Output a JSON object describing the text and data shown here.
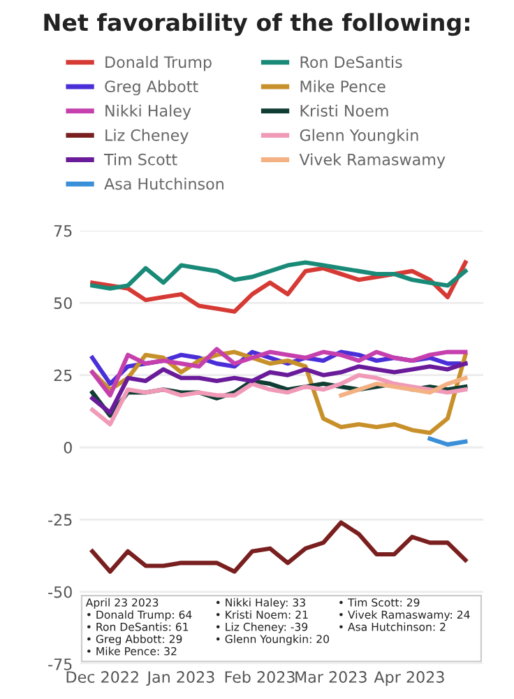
{
  "chart_data": {
    "type": "line",
    "title": "Net favorability of the following:",
    "x": [
      "2022-11-27",
      "2022-12-04",
      "2022-12-11",
      "2022-12-18",
      "2022-12-25",
      "2023-01-01",
      "2023-01-08",
      "2023-01-15",
      "2023-01-22",
      "2023-01-29",
      "2023-02-05",
      "2023-02-12",
      "2023-02-19",
      "2023-02-26",
      "2023-03-05",
      "2023-03-12",
      "2023-03-19",
      "2023-03-26",
      "2023-04-02",
      "2023-04-09",
      "2023-04-16",
      "2023-04-23"
    ],
    "series": [
      {
        "name": "Donald Trump",
        "color": "#d63a35",
        "marker": "none",
        "values": [
          57,
          56,
          55,
          51,
          52,
          53,
          49,
          48,
          47,
          53,
          57,
          53,
          61,
          62,
          60,
          58,
          59,
          60,
          61,
          58,
          52,
          64
        ]
      },
      {
        "name": "Ron DeSantis",
        "color": "#1a8a78",
        "values": [
          56,
          55,
          56,
          62,
          57,
          63,
          62,
          61,
          58,
          59,
          61,
          63,
          64,
          63,
          62,
          61,
          60,
          60,
          58,
          57,
          56,
          61
        ]
      },
      {
        "name": "Greg Abbott",
        "color": "#4a2ed8",
        "marker": "none",
        "values": [
          31,
          22,
          28,
          29,
          30,
          32,
          31,
          29,
          28,
          33,
          31,
          29,
          31,
          30,
          33,
          32,
          30,
          31,
          30,
          31,
          29,
          29
        ]
      },
      {
        "name": "Mike Pence",
        "color": "#c8902a",
        "marker": "none",
        "values": [
          26,
          20,
          24,
          32,
          31,
          26,
          30,
          32,
          33,
          31,
          29,
          30,
          28,
          10,
          7,
          8,
          7,
          8,
          6,
          5,
          10,
          32
        ]
      },
      {
        "name": "Nikki Haley",
        "color": "#c640ad",
        "values": [
          26,
          18,
          32,
          29,
          30,
          29,
          28,
          34,
          29,
          31,
          33,
          32,
          31,
          33,
          32,
          30,
          33,
          31,
          30,
          32,
          33,
          33
        ]
      },
      {
        "name": "Kristi Noem",
        "color": "#0f3d33",
        "marker": "none",
        "values": [
          19,
          11,
          19,
          19,
          20,
          19,
          19,
          17,
          19,
          23,
          22,
          20,
          21,
          22,
          21,
          20,
          21,
          22,
          20,
          21,
          20,
          21
        ]
      },
      {
        "name": "Liz Cheney",
        "color": "#7a1f1f",
        "values": [
          -36,
          -43,
          -36,
          -41,
          -41,
          -40,
          -40,
          -40,
          -43,
          -36,
          -35,
          -40,
          -35,
          -33,
          -26,
          -30,
          -37,
          -37,
          -31,
          -33,
          -33,
          -39
        ]
      },
      {
        "name": "Glenn Youngkin",
        "color": "#f09ab8",
        "marker": "none",
        "values": [
          13,
          8,
          20,
          19,
          20,
          18,
          19,
          18,
          18,
          22,
          20,
          19,
          21,
          20,
          22,
          25,
          24,
          22,
          21,
          20,
          19,
          20
        ]
      },
      {
        "name": "Tim Scott",
        "color": "#6a1b9a",
        "values": [
          17,
          12,
          24,
          23,
          27,
          24,
          24,
          23,
          24,
          23,
          26,
          25,
          27,
          25,
          26,
          28,
          27,
          26,
          27,
          28,
          27,
          29
        ]
      },
      {
        "name": "Vivek Ramaswamy",
        "color": "#f4b183",
        "values": [
          null,
          null,
          null,
          null,
          null,
          null,
          null,
          null,
          null,
          null,
          null,
          null,
          null,
          null,
          18,
          20,
          22,
          21,
          20,
          19,
          22,
          24
        ]
      },
      {
        "name": "Asa Hutchinson",
        "color": "#3a8fd8",
        "values": [
          null,
          null,
          null,
          null,
          null,
          null,
          null,
          null,
          null,
          null,
          null,
          null,
          null,
          null,
          null,
          null,
          null,
          null,
          null,
          3,
          1,
          2
        ]
      }
    ],
    "xlim": [
      "2022-11-22",
      "2023-04-30"
    ],
    "xticks": [
      {
        "value": "2022-12-01",
        "label": "Dec 2022"
      },
      {
        "value": "2023-01-01",
        "label": "Jan 2023"
      },
      {
        "value": "2023-02-01",
        "label": "Feb 2023"
      },
      {
        "value": "2023-03-01",
        "label": "Mar 2023"
      },
      {
        "value": "2023-04-01",
        "label": "Apr 2023"
      }
    ],
    "ylim": [
      -75,
      75
    ],
    "yticks": [
      -75,
      -50,
      -25,
      0,
      25,
      50,
      75
    ],
    "grid": "y",
    "legend": "top",
    "line_style": "solid",
    "annotations": [
      "April 23 2023",
      "• Donald Trump: 64",
      "• Ron DeSantis: 61",
      "• Greg Abbott: 29",
      "• Mike Pence: 32",
      "• Nikki Haley: 33",
      "• Kristi Noem: 21",
      "• Liz Cheney: -39",
      "• Glenn Youngkin: 20",
      "• Tim Scott: 29",
      "• Vivek Ramaswamy: 24",
      "• Asa Hutchinson: 2"
    ]
  }
}
